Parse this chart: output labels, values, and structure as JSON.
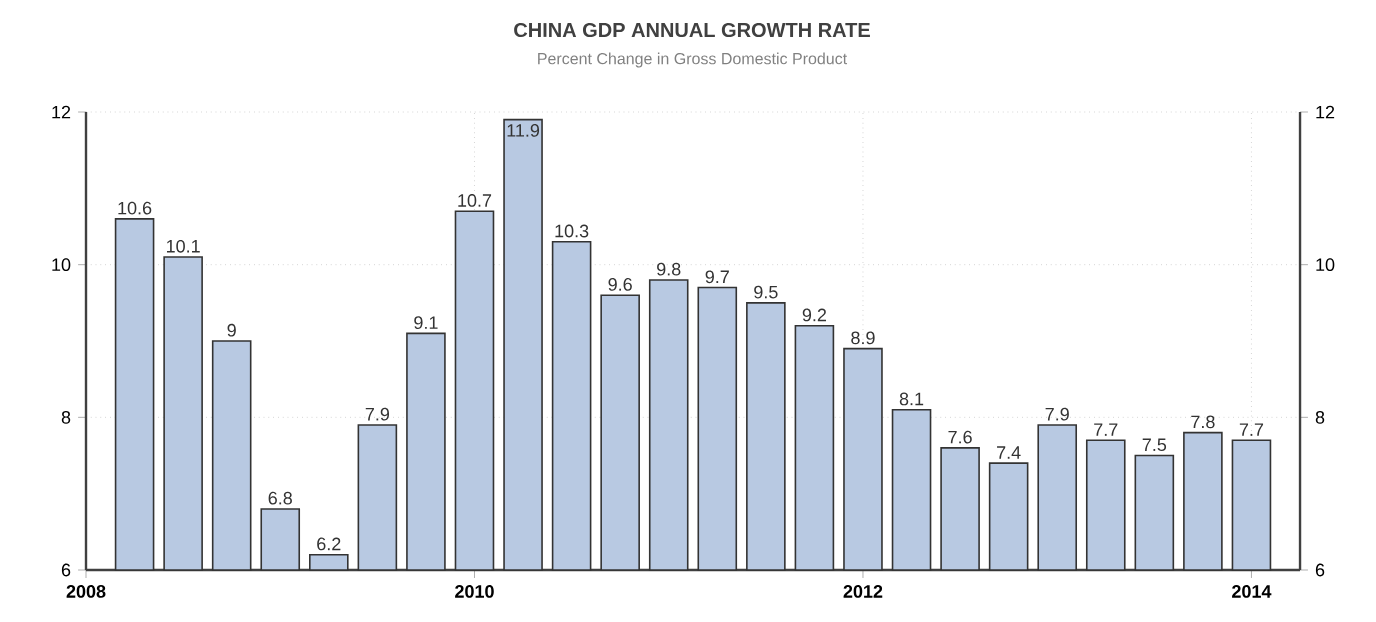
{
  "chart_data": {
    "type": "bar",
    "title": "CHINA GDP ANNUAL GROWTH RATE",
    "subtitle": "Percent Change in Gross Domestic Product",
    "x": [
      2008.25,
      2008.5,
      2008.75,
      2009,
      2009.25,
      2009.5,
      2009.75,
      2010,
      2010.25,
      2010.5,
      2010.75,
      2011,
      2011.25,
      2011.5,
      2011.75,
      2012,
      2012.25,
      2012.5,
      2012.75,
      2013,
      2013.25,
      2013.5,
      2013.75,
      2014
    ],
    "values": [
      10.6,
      10.1,
      9,
      6.8,
      6.2,
      7.9,
      9.1,
      10.7,
      11.9,
      10.3,
      9.6,
      9.8,
      9.7,
      9.5,
      9.2,
      8.9,
      8.1,
      7.6,
      7.4,
      7.9,
      7.7,
      7.5,
      7.8,
      7.7
    ],
    "color": "#b8c9e2",
    "xlim": [
      2008,
      2014.25
    ],
    "xticks": [
      2008,
      2010,
      2012,
      2014
    ],
    "ylim": [
      6,
      12
    ],
    "yticks": [
      6,
      8,
      10,
      12
    ],
    "y2lim": [
      6,
      12
    ],
    "y2ticks": [
      6,
      8,
      10,
      12
    ],
    "grid": true,
    "data_labels": true
  }
}
